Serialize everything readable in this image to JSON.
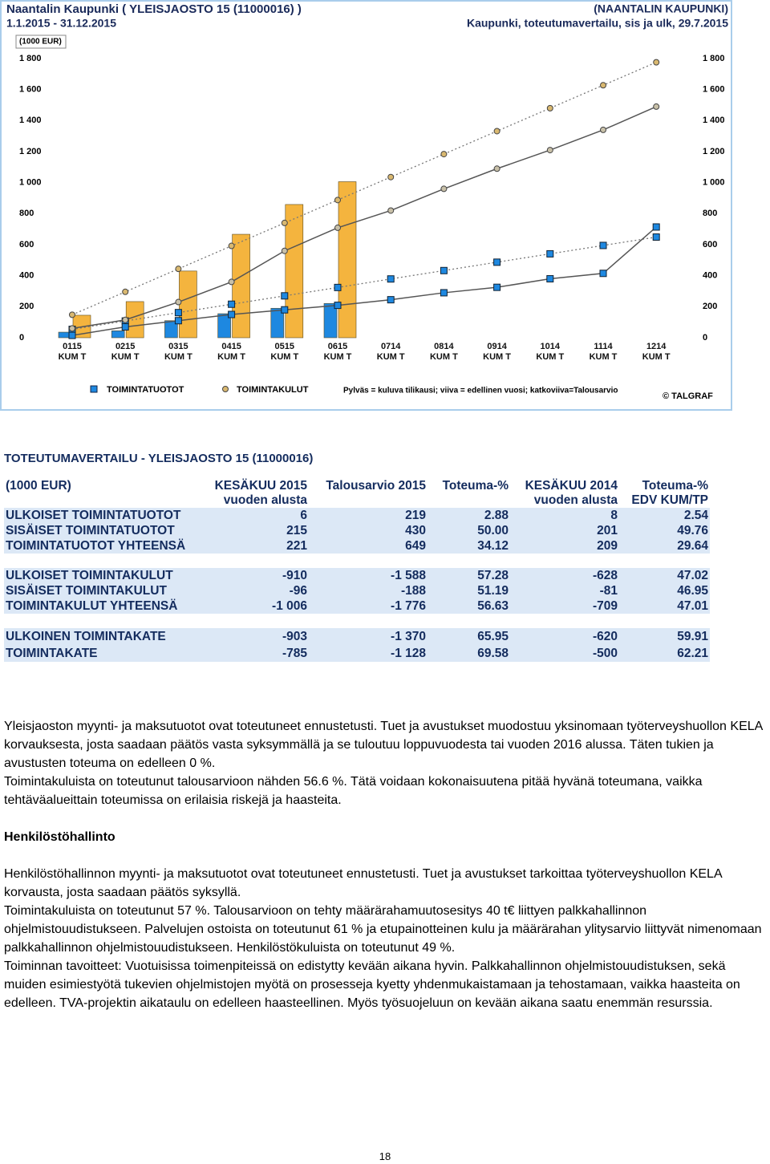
{
  "chart_data": {
    "type": "bar",
    "title": "Naantalin Kaupunki ( YLEISJAOSTO 15 (11000016) )",
    "subtitle": "1.1.2015 - 31.12.2015",
    "title_right": "(NAANTALIN KAUPUNKI)",
    "subtitle_right": "Kaupunki, toteutumavertailu, sis ja ulk, 29.7.2015",
    "y_label": "(1000 EUR)",
    "categories": [
      "0115 KUM T",
      "0215 KUM T",
      "0315 KUM T",
      "0415 KUM T",
      "0515 KUM T",
      "0615 KUM T",
      "0714 KUM T",
      "0814 KUM T",
      "0914 KUM T",
      "1014 KUM T",
      "1114 KUM T",
      "1214 KUM T"
    ],
    "series": [
      {
        "name": "TOIMINTATUOTOT",
        "color": "#1e88e0",
        "marker": "square",
        "values": [
          36,
          45,
          110,
          155,
          190,
          221,
          null,
          null,
          null,
          null,
          null,
          null
        ],
        "budget": [
          54,
          108,
          162,
          216,
          270,
          324,
          379,
          433,
          487,
          541,
          595,
          649
        ],
        "previous": [
          15,
          70,
          110,
          150,
          180,
          209,
          245,
          290,
          325,
          380,
          415,
          714
        ]
      },
      {
        "name": "TOIMINTAKULUT",
        "color": "#f4b43e",
        "marker": "circle",
        "values": [
          145,
          233,
          430,
          667,
          859,
          1006,
          null,
          null,
          null,
          null,
          null,
          null
        ],
        "budget": [
          148,
          296,
          444,
          592,
          740,
          888,
          1036,
          1184,
          1332,
          1480,
          1628,
          1776
        ],
        "previous": [
          60,
          115,
          230,
          360,
          560,
          709,
          820,
          960,
          1090,
          1210,
          1340,
          1490
        ]
      }
    ],
    "ylim": [
      0,
      1800
    ],
    "yticks": [
      0,
      200,
      400,
      600,
      800,
      {
        "value": 1000,
        "label": "1 000"
      },
      {
        "value": 1200,
        "label": "1 200"
      },
      {
        "value": 1400,
        "label": "1 400"
      },
      {
        "value": 1600,
        "label": "1 600"
      },
      {
        "value": 1800,
        "label": "1 800"
      }
    ],
    "grid": false,
    "note": "Pylväs = kuluva tilikausi; viiva = edellinen vuosi; katkoviiva=Talousarvio",
    "credit": "© TALGRAF"
  },
  "table": {
    "title": "TOTEUTUMAVERTAILU - YLEISJAOSTO 15 (11000016)",
    "header": [
      "(1000 EUR)",
      "KESÄKUU 2015 vuoden alusta",
      "Talousarvio 2015",
      "Toteuma-%",
      "KESÄKUU 2014 vuoden alusta",
      "Toteuma-% EDV KUM/TP"
    ],
    "groups": [
      [
        [
          "ULKOISET TOIMINTATUOTOT",
          "6",
          "219",
          "2.88",
          "8",
          "2.54"
        ],
        [
          "SISÄISET TOIMINTATUOTOT",
          "215",
          "430",
          "50.00",
          "201",
          "49.76"
        ],
        [
          "TOIMINTATUOTOT YHTEENSÄ",
          "221",
          "649",
          "34.12",
          "209",
          "29.64"
        ]
      ],
      [
        [
          "ULKOISET TOIMINTAKULUT",
          "-910",
          "-1 588",
          "57.28",
          "-628",
          "47.02"
        ],
        [
          "SISÄISET TOIMINTAKULUT",
          "-96",
          "-188",
          "51.19",
          "-81",
          "46.95"
        ],
        [
          "TOIMINTAKULUT YHTEENSÄ",
          "-1 006",
          "-1 776",
          "56.63",
          "-709",
          "47.01"
        ]
      ],
      [
        [
          "ULKOINEN TOIMINTAKATE",
          "-903",
          "-1 370",
          "65.95",
          "-620",
          "59.91"
        ],
        [
          "TOIMINTAKATE",
          "-785",
          "-1 128",
          "69.58",
          "-500",
          "62.21"
        ]
      ]
    ]
  },
  "text": {
    "paragraphs_1": [
      "Yleisjaoston myynti- ja maksutuotot ovat toteutuneet ennustetusti. Tuet ja avustukset muodostuu yksinomaan työterveyshuollon KELA korvauksesta, josta saadaan päätös vasta syksymmällä ja se tuloutuu loppuvuodesta tai vuoden 2016 alussa. Täten tukien ja avustusten toteuma on edelleen 0 %.",
      "Toimintakuluista on toteutunut talousarvioon nähden 56.6 %. Tätä voidaan kokonaisuutena pitää hyvänä toteumana, vaikka tehtäväalueittain toteumissa on erilaisia riskejä ja haasteita."
    ],
    "heading": "Henkilöstöhallinto",
    "paragraphs_2": [
      "Henkilöstöhallinnon myynti- ja maksutuotot ovat toteutuneet ennustetusti. Tuet ja avustukset tarkoittaa työterveyshuollon KELA korvausta, josta saadaan päätös syksyllä.",
      "Toimintakuluista on toteutunut 57 %. Talousarvioon on tehty määrärahamuutosesitys 40 t€ liittyen palkkahallinnon ohjelmistouudistukseen. Palvelujen ostoista on toteutunut 61 % ja etupainotteinen kulu ja määrärahan ylitysarvio liittyvät nimenomaan palkkahallinnon ohjelmistouudistukseen. Henkilöstökuluista on toteutunut 49 %.",
      "Toiminnan tavoitteet: Vuotuisissa toimenpiteissä on edistytty kevään aikana hyvin. Palkkahallinnon ohjelmistouudistuksen, sekä muiden esimiestyötä tukevien ohjelmistojen myötä on prosesseja kyetty yhdenmukaistamaan ja tehostamaan, vaikka haasteita on edelleen. TVA-projektin aikataulu on edelleen haasteellinen. Myös työsuojeluun on kevään aikana saatu enemmän resurssia."
    ],
    "page_number": "18"
  }
}
